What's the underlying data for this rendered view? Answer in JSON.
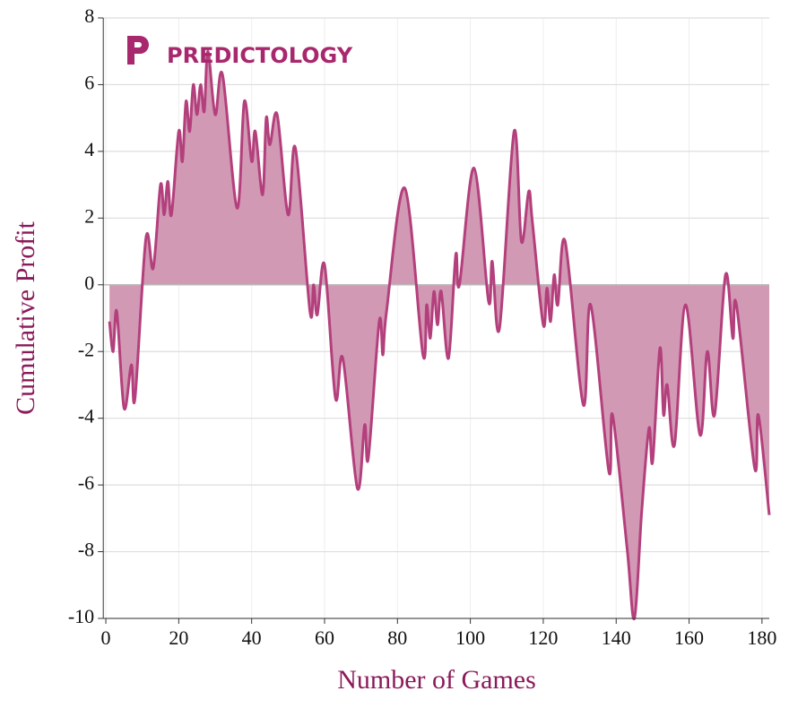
{
  "chart_data": {
    "type": "area",
    "logo": "PREDICTOLOGY",
    "xlabel": "Number of Games",
    "ylabel": "Cumulative Profit",
    "x": [
      1,
      2,
      3,
      5,
      7,
      8,
      11,
      13,
      15,
      16,
      17,
      18,
      20,
      21,
      22,
      23,
      24,
      25,
      26,
      27,
      28,
      30,
      32,
      36,
      38,
      40,
      41,
      43,
      44,
      45,
      47,
      50,
      52,
      56,
      57,
      58,
      60,
      63,
      65,
      69,
      71,
      72,
      75,
      76,
      77,
      82,
      87,
      88,
      89,
      90,
      91,
      92,
      94,
      96,
      97,
      101,
      105,
      106,
      108,
      112,
      114,
      116,
      117,
      120,
      121,
      122,
      123,
      124,
      126,
      131,
      133,
      138,
      139,
      143,
      145,
      147,
      149,
      150,
      152,
      153,
      154,
      156,
      159,
      163,
      165,
      167,
      170,
      172,
      173,
      178,
      179,
      182
    ],
    "series": [
      {
        "name": "Cumulative Profit",
        "color": "#b3407c",
        "fill": "#d299b5",
        "values": [
          -1.1,
          -2,
          -0.8,
          -3.7,
          -2.4,
          -3.4,
          1.4,
          0.5,
          3.0,
          2.1,
          3.1,
          2.1,
          4.6,
          3.7,
          5.5,
          4.6,
          6.0,
          5.1,
          6.0,
          5.2,
          7.0,
          5.1,
          6.3,
          2.3,
          5.5,
          3.7,
          4.6,
          2.7,
          5.0,
          4.2,
          5.1,
          2.1,
          4.1,
          -0.8,
          0,
          -0.9,
          0.6,
          -3.4,
          -2.2,
          -6.1,
          -4.2,
          -5.2,
          -1.1,
          -2.1,
          -0.8,
          2.9,
          -2.1,
          -0.6,
          -1.6,
          -0.2,
          -1.2,
          -0.2,
          -2.2,
          0.9,
          0,
          3.5,
          -0.5,
          0.7,
          -1.3,
          4.6,
          1.3,
          2.8,
          1.9,
          -1.2,
          -0.1,
          -1.1,
          0.3,
          -0.6,
          1.3,
          -3.6,
          -0.6,
          -5.6,
          -3.9,
          -7.9,
          -10,
          -6.8,
          -4.3,
          -5.3,
          -1.9,
          -3.9,
          -3.0,
          -4.8,
          -0.6,
          -4.5,
          -2.0,
          -3.9,
          0.3,
          -1.6,
          -0.6,
          -5.5,
          -3.9,
          -6.9
        ]
      }
    ],
    "xlim": [
      -0.7,
      182
    ],
    "ylim": [
      -10,
      8
    ],
    "xticks": [
      0,
      20,
      40,
      60,
      80,
      100,
      120,
      140,
      160,
      180
    ],
    "yticks": [
      -10,
      -8,
      -6,
      -4,
      -2,
      0,
      2,
      4,
      6,
      8
    ],
    "grid": true
  }
}
